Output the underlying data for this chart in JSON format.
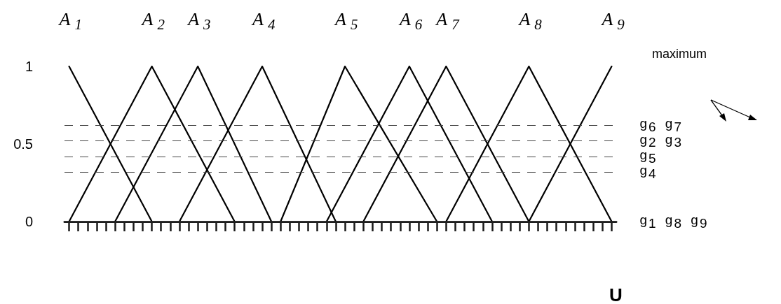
{
  "chart_data": {
    "type": "line",
    "xlabel": "U",
    "annotations": [
      "maximum"
    ],
    "categories": [
      null,
      null,
      null,
      null,
      null,
      null,
      null,
      null,
      null,
      null,
      null,
      null,
      null,
      null,
      null,
      null,
      null,
      null,
      null,
      null,
      null,
      null,
      null,
      null,
      null,
      null,
      null,
      null,
      null,
      null,
      null,
      null,
      null,
      null,
      null,
      null,
      null,
      null,
      null,
      null,
      null,
      null,
      null,
      null,
      null,
      null,
      null,
      null,
      null,
      null,
      null,
      null,
      null,
      null,
      null,
      null,
      null,
      null,
      null,
      null
    ],
    "ylim": [
      0,
      1
    ],
    "yticks": [
      0,
      0.5,
      1
    ],
    "grid": false,
    "legend": false,
    "marker": "none",
    "line_style": "solid",
    "tick_labels": "y",
    "series": [
      {
        "name": "A$_{1}$",
        "color": "#000000",
        "values": [
          1,
          null,
          null,
          null,
          null,
          null,
          null,
          null,
          null,
          0,
          null,
          null,
          null,
          null,
          null,
          null,
          null,
          null,
          null,
          null,
          null,
          null,
          null,
          null,
          null,
          null,
          null,
          null,
          null,
          null,
          null,
          null,
          null,
          null,
          null,
          null,
          null,
          null,
          null,
          null,
          null,
          null,
          null,
          null,
          null,
          null,
          null,
          null,
          null,
          null,
          null,
          null,
          null,
          null,
          null,
          null,
          null,
          null,
          null,
          null
        ]
      },
      {
        "name": "A$_{2}$",
        "color": "#000000",
        "values": [
          0,
          null,
          null,
          null,
          null,
          null,
          null,
          null,
          null,
          1,
          null,
          null,
          null,
          null,
          null,
          null,
          null,
          null,
          0,
          null,
          null,
          null,
          null,
          null,
          null,
          null,
          null,
          null,
          null,
          null,
          null,
          null,
          null,
          null,
          null,
          null,
          null,
          null,
          null,
          null,
          null,
          null,
          null,
          null,
          null,
          null,
          null,
          null,
          null,
          null,
          null,
          null,
          null,
          null,
          null,
          null,
          null,
          null,
          null,
          null
        ]
      },
      {
        "name": "A$_{3}$",
        "color": "#000000",
        "values": [
          null,
          null,
          null,
          null,
          null,
          0,
          null,
          null,
          null,
          null,
          null,
          null,
          null,
          null,
          1,
          null,
          null,
          null,
          null,
          null,
          null,
          null,
          0,
          null,
          null,
          null,
          null,
          null,
          null,
          null,
          null,
          null,
          null,
          null,
          null,
          null,
          null,
          null,
          null,
          null,
          null,
          null,
          null,
          null,
          null,
          null,
          null,
          null,
          null,
          null,
          null,
          null,
          null,
          null,
          null,
          null,
          null,
          null,
          null,
          null
        ]
      },
      {
        "name": "A$_{4}$",
        "color": "#000000",
        "values": [
          null,
          null,
          null,
          null,
          null,
          null,
          null,
          null,
          null,
          null,
          null,
          null,
          0,
          null,
          null,
          null,
          null,
          null,
          null,
          null,
          null,
          1,
          null,
          null,
          null,
          null,
          null,
          null,
          null,
          0,
          null,
          null,
          null,
          null,
          null,
          null,
          null,
          null,
          null,
          null,
          null,
          null,
          null,
          null,
          null,
          null,
          null,
          null,
          null,
          null,
          null,
          null,
          null,
          null,
          null,
          null,
          null,
          null,
          null,
          null
        ]
      },
      {
        "name": "A$_{5}$",
        "color": "#000000",
        "values": [
          null,
          null,
          null,
          null,
          null,
          null,
          null,
          null,
          null,
          null,
          null,
          null,
          null,
          null,
          null,
          null,
          null,
          null,
          null,
          null,
          null,
          null,
          null,
          0,
          null,
          null,
          null,
          null,
          null,
          null,
          1,
          null,
          null,
          null,
          null,
          null,
          null,
          null,
          null,
          null,
          0,
          null,
          null,
          null,
          null,
          null,
          null,
          null,
          null,
          null,
          null,
          null,
          null,
          null,
          null,
          null,
          null,
          null,
          null,
          null
        ]
      },
      {
        "name": "A$_{6}$",
        "color": "#000000",
        "values": [
          null,
          null,
          null,
          null,
          null,
          null,
          null,
          null,
          null,
          null,
          null,
          null,
          null,
          null,
          null,
          null,
          null,
          null,
          null,
          null,
          null,
          null,
          null,
          null,
          null,
          null,
          null,
          null,
          0,
          null,
          null,
          null,
          null,
          null,
          null,
          null,
          null,
          1,
          null,
          null,
          null,
          null,
          null,
          null,
          null,
          null,
          0,
          null,
          null,
          null,
          null,
          null,
          null,
          null,
          null,
          null,
          null,
          null,
          null,
          null
        ]
      },
      {
        "name": "A$_{7}$",
        "color": "#000000",
        "values": [
          null,
          null,
          null,
          null,
          null,
          null,
          null,
          null,
          null,
          null,
          null,
          null,
          null,
          null,
          null,
          null,
          null,
          null,
          null,
          null,
          null,
          null,
          null,
          null,
          null,
          null,
          null,
          null,
          null,
          null,
          null,
          null,
          0,
          null,
          null,
          null,
          null,
          null,
          null,
          null,
          null,
          1,
          null,
          null,
          null,
          null,
          null,
          null,
          null,
          null,
          0,
          null,
          null,
          null,
          null,
          null,
          null,
          null,
          null,
          null
        ]
      },
      {
        "name": "A$_{8}$",
        "color": "#000000",
        "values": [
          null,
          null,
          null,
          null,
          null,
          null,
          null,
          null,
          null,
          null,
          null,
          null,
          null,
          null,
          null,
          null,
          null,
          null,
          null,
          null,
          null,
          null,
          null,
          null,
          null,
          null,
          null,
          null,
          null,
          null,
          null,
          null,
          null,
          null,
          null,
          null,
          null,
          null,
          null,
          null,
          null,
          0,
          null,
          null,
          null,
          null,
          null,
          null,
          null,
          null,
          1,
          null,
          null,
          null,
          null,
          null,
          null,
          null,
          null,
          0
        ]
      },
      {
        "name": "A$_{9}$",
        "color": "#000000",
        "values": [
          null,
          null,
          null,
          null,
          null,
          null,
          null,
          null,
          null,
          null,
          null,
          null,
          null,
          null,
          null,
          null,
          null,
          null,
          null,
          null,
          null,
          null,
          null,
          null,
          null,
          null,
          null,
          null,
          null,
          null,
          null,
          null,
          null,
          null,
          null,
          null,
          null,
          null,
          null,
          null,
          null,
          null,
          null,
          null,
          null,
          null,
          null,
          null,
          null,
          null,
          0,
          null,
          null,
          null,
          null,
          null,
          null,
          null,
          null,
          1
        ]
      }
    ],
    "ref_lines": [
      {
        "axis": "y",
        "value": 0.62,
        "label": "g$_{6}$ g$_{7}$",
        "line_style": "dashed"
      },
      {
        "axis": "y",
        "value": 0.52,
        "label": "g$_{2}$ g$_{3}$",
        "line_style": "dashed"
      },
      {
        "axis": "y",
        "value": 0.42,
        "label": "g$_{5}$",
        "line_style": "dashed"
      },
      {
        "axis": "y",
        "value": 0.32,
        "label": "g$_{4}$",
        "line_style": "dashed"
      },
      {
        "axis": "y",
        "value": 0,
        "label": "g$_{1}$ g$_{8}$ g$_{9}$",
        "line_style": "solid"
      }
    ]
  }
}
